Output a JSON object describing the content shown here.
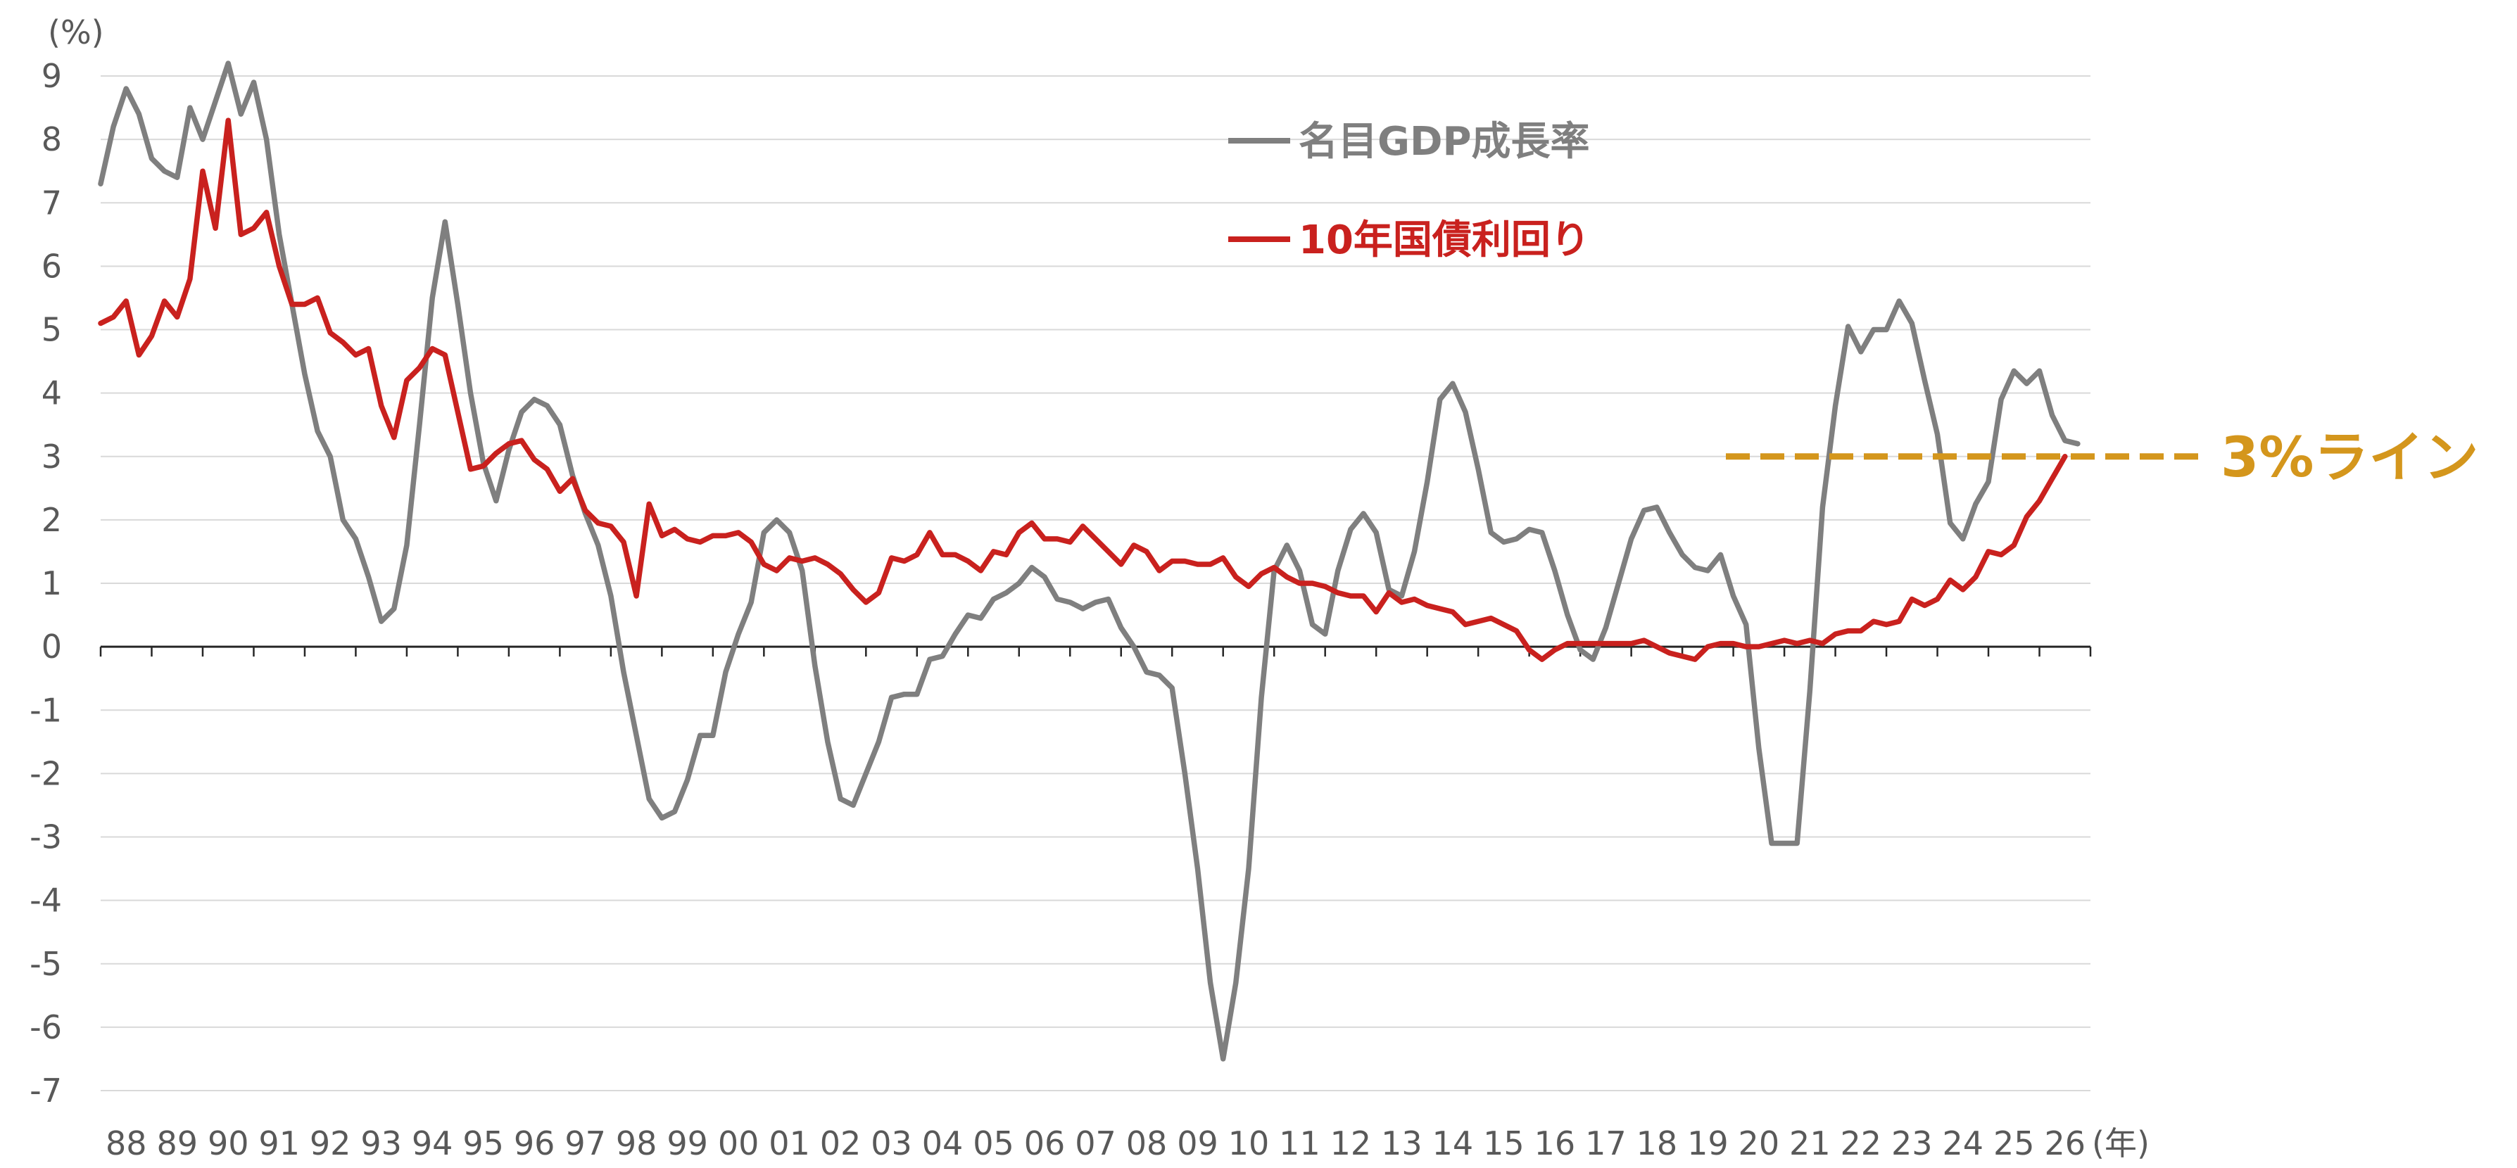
{
  "chart_data": {
    "type": "line",
    "y_unit_label": "(%)",
    "x_unit_label": "(年)",
    "ylim": [
      -7,
      9
    ],
    "y_ticks": [
      9,
      8,
      7,
      6,
      5,
      4,
      3,
      2,
      1,
      0,
      -1,
      -2,
      -3,
      -4,
      -5,
      -6,
      -7
    ],
    "x_start_year": 1988,
    "points_per_year": 4,
    "x_ticks": [
      "88",
      "89",
      "90",
      "91",
      "92",
      "93",
      "94",
      "95",
      "96",
      "97",
      "98",
      "99",
      "00",
      "01",
      "02",
      "03",
      "04",
      "05",
      "06",
      "07",
      "08",
      "09",
      "10",
      "11",
      "12",
      "13",
      "14",
      "15",
      "16",
      "17",
      "18",
      "19",
      "20",
      "21",
      "22",
      "23",
      "24",
      "25",
      "26"
    ],
    "grid": true,
    "legend_placement": "top-center",
    "series": [
      {
        "name": "名目GDP成長率",
        "color": "#7f7f7f",
        "values": [
          7.3,
          8.2,
          8.8,
          8.4,
          7.7,
          7.5,
          7.4,
          8.5,
          8.0,
          8.6,
          9.2,
          8.4,
          8.9,
          8.0,
          6.5,
          5.4,
          4.3,
          3.4,
          3.0,
          2.0,
          1.7,
          1.1,
          0.4,
          0.6,
          1.6,
          3.5,
          5.5,
          6.7,
          5.4,
          4.0,
          2.9,
          2.3,
          3.1,
          3.7,
          3.9,
          3.8,
          3.5,
          2.7,
          2.1,
          1.6,
          0.8,
          -0.4,
          -1.4,
          -2.4,
          -2.7,
          -2.6,
          -2.1,
          -1.4,
          -1.4,
          -0.4,
          0.2,
          0.7,
          1.8,
          2.0,
          1.8,
          1.2,
          -0.3,
          -1.5,
          -2.4,
          -2.5,
          -2.0,
          -1.5,
          -0.8,
          -0.75,
          -0.75,
          -0.2,
          -0.15,
          0.2,
          0.5,
          0.45,
          0.75,
          0.85,
          1.0,
          1.25,
          1.1,
          0.75,
          0.7,
          0.6,
          0.7,
          0.75,
          0.3,
          0.0,
          -0.4,
          -0.45,
          -0.65,
          -2.0,
          -3.5,
          -5.3,
          -6.5,
          -5.3,
          -3.5,
          -0.8,
          1.2,
          1.6,
          1.2,
          0.35,
          0.2,
          1.2,
          1.85,
          2.1,
          1.8,
          0.9,
          0.8,
          1.5,
          2.6,
          3.9,
          4.15,
          3.7,
          2.8,
          1.8,
          1.65,
          1.7,
          1.85,
          1.8,
          1.2,
          0.5,
          -0.05,
          -0.2,
          0.3,
          1.0,
          1.7,
          2.15,
          2.2,
          1.8,
          1.45,
          1.25,
          1.2,
          1.45,
          0.8,
          0.35,
          -1.6,
          -3.1,
          -3.1,
          -3.1,
          -0.7,
          2.2,
          3.8,
          5.05,
          4.65,
          5.0,
          5.0,
          5.45,
          5.1,
          4.2,
          3.35,
          1.95,
          1.7,
          2.25,
          2.6,
          3.9,
          4.35,
          4.15,
          4.35,
          3.65,
          3.25,
          3.2
        ]
      },
      {
        "name": "10年国債利回り",
        "color": "#c9211e",
        "values": [
          5.1,
          5.2,
          5.45,
          4.6,
          4.9,
          5.45,
          5.2,
          5.8,
          7.5,
          6.6,
          8.3,
          6.5,
          6.6,
          6.85,
          6.0,
          5.4,
          5.4,
          5.5,
          4.95,
          4.8,
          4.6,
          4.7,
          3.8,
          3.3,
          4.2,
          4.4,
          4.7,
          4.6,
          3.7,
          2.8,
          2.85,
          3.05,
          3.2,
          3.25,
          2.95,
          2.8,
          2.45,
          2.65,
          2.15,
          1.95,
          1.9,
          1.65,
          0.8,
          2.25,
          1.75,
          1.85,
          1.7,
          1.65,
          1.75,
          1.75,
          1.8,
          1.65,
          1.3,
          1.2,
          1.4,
          1.35,
          1.4,
          1.3,
          1.15,
          0.9,
          0.7,
          0.85,
          1.4,
          1.35,
          1.45,
          1.8,
          1.45,
          1.45,
          1.35,
          1.2,
          1.5,
          1.45,
          1.8,
          1.95,
          1.7,
          1.7,
          1.65,
          1.9,
          1.7,
          1.5,
          1.3,
          1.6,
          1.5,
          1.2,
          1.35,
          1.35,
          1.3,
          1.3,
          1.4,
          1.1,
          0.95,
          1.15,
          1.25,
          1.1,
          1.0,
          1.0,
          0.95,
          0.85,
          0.8,
          0.8,
          0.55,
          0.85,
          0.7,
          0.75,
          0.65,
          0.6,
          0.55,
          0.35,
          0.4,
          0.45,
          0.35,
          0.25,
          -0.05,
          -0.2,
          -0.05,
          0.05,
          0.05,
          0.05,
          0.05,
          0.05,
          0.05,
          0.1,
          0.0,
          -0.1,
          -0.15,
          -0.2,
          0.0,
          0.05,
          0.05,
          0.0,
          0.0,
          0.05,
          0.1,
          0.05,
          0.1,
          0.05,
          0.2,
          0.25,
          0.25,
          0.4,
          0.35,
          0.4,
          0.75,
          0.65,
          0.75,
          1.05,
          0.9,
          1.1,
          1.5,
          1.45,
          1.6,
          2.05,
          2.3,
          2.65,
          3.0
        ]
      }
    ],
    "reference_line": {
      "value": 3,
      "label": "3%ライン",
      "color": "#d4961c",
      "style": "dashed"
    }
  }
}
